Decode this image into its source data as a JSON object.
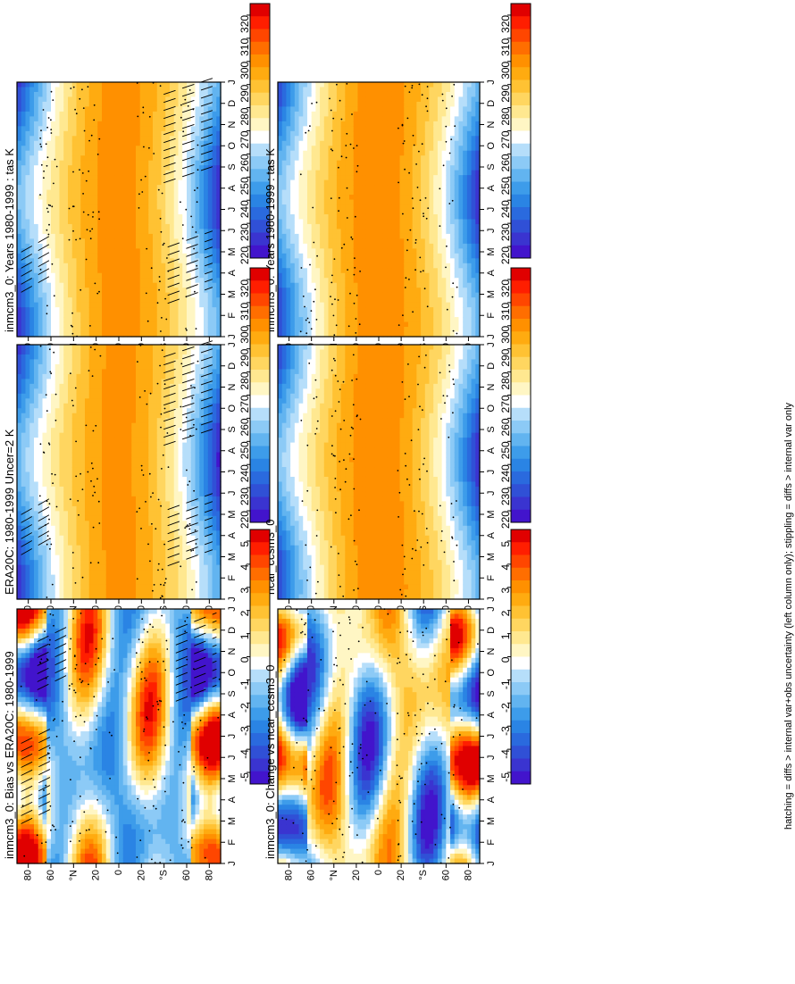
{
  "figure": {
    "footnote": "hatching = diffs > internal var+obs uncertainty (left column only); stippling = diffs > internal var only"
  },
  "months": [
    "J",
    "F",
    "M",
    "A",
    "M",
    "J",
    "J",
    "A",
    "S",
    "O",
    "N",
    "D",
    "J"
  ],
  "lat_ticks": [
    {
      "v": 80,
      "t": "80"
    },
    {
      "v": 60,
      "t": "60"
    },
    {
      "v": 40,
      "t": "°N"
    },
    {
      "v": 20,
      "t": "20"
    },
    {
      "v": 0,
      "t": "0"
    },
    {
      "v": -20,
      "t": "20"
    },
    {
      "v": -40,
      "t": "°S"
    },
    {
      "v": -60,
      "t": "60"
    },
    {
      "v": -80,
      "t": "80"
    }
  ],
  "chart_data": [
    {
      "id": "p1",
      "type": "heatmap",
      "title": "inmcm3_0: Years 1980-1999 : tas K",
      "field": "abs",
      "variant": 0,
      "hatching": true,
      "colorbar": {
        "labels": [
          "320",
          "310",
          "300",
          "290",
          "280",
          "270",
          "260",
          "250",
          "240",
          "230",
          "220"
        ],
        "colors": [
          "#e00000",
          "#ff1e00",
          "#ff4600",
          "#ff6e00",
          "#ff9000",
          "#ffab10",
          "#ffc233",
          "#ffd660",
          "#ffe890",
          "#fff6c4",
          "#ffffff",
          "#b6defa",
          "#8ccaf6",
          "#62b4f0",
          "#3d9cea",
          "#2a84e4",
          "#2a6ade",
          "#3050d6",
          "#3a34d0",
          "#4214cc"
        ]
      },
      "ylim": [
        -90,
        90
      ]
    },
    {
      "id": "p2",
      "type": "heatmap",
      "title": "inmcm3_0: Years 1980-1999 : tas K",
      "field": "abs",
      "variant": 1,
      "hatching": false,
      "colorbar": {
        "labels": [
          "320",
          "310",
          "300",
          "290",
          "280",
          "270",
          "260",
          "250",
          "240",
          "230",
          "220"
        ],
        "colors": [
          "#e00000",
          "#ff1e00",
          "#ff4600",
          "#ff6e00",
          "#ff9000",
          "#ffab10",
          "#ffc233",
          "#ffd660",
          "#ffe890",
          "#fff6c4",
          "#ffffff",
          "#b6defa",
          "#8ccaf6",
          "#62b4f0",
          "#3d9cea",
          "#2a84e4",
          "#2a6ade",
          "#3050d6",
          "#3a34d0",
          "#4214cc"
        ]
      },
      "ylim": [
        -90,
        90
      ]
    },
    {
      "id": "p3",
      "type": "heatmap",
      "title": "ERA20C: 1980-1999 Uncer=2 K",
      "field": "abs",
      "variant": 2,
      "hatching": true,
      "colorbar": {
        "labels": [
          "320",
          "310",
          "300",
          "290",
          "280",
          "270",
          "260",
          "250",
          "240",
          "230",
          "220"
        ],
        "colors": [
          "#e00000",
          "#ff1e00",
          "#ff4600",
          "#ff6e00",
          "#ff9000",
          "#ffab10",
          "#ffc233",
          "#ffd660",
          "#ffe890",
          "#fff6c4",
          "#ffffff",
          "#b6defa",
          "#8ccaf6",
          "#62b4f0",
          "#3d9cea",
          "#2a84e4",
          "#2a6ade",
          "#3050d6",
          "#3a34d0",
          "#4214cc"
        ]
      },
      "ylim": [
        -90,
        90
      ]
    },
    {
      "id": "p4",
      "type": "heatmap",
      "title": "ncar_ccsm3_0",
      "field": "abs",
      "variant": 3,
      "hatching": false,
      "colorbar": {
        "labels": [
          "320",
          "310",
          "300",
          "290",
          "280",
          "270",
          "260",
          "250",
          "240",
          "230",
          "220"
        ],
        "colors": [
          "#e00000",
          "#ff1e00",
          "#ff4600",
          "#ff6e00",
          "#ff9000",
          "#ffab10",
          "#ffc233",
          "#ffd660",
          "#ffe890",
          "#fff6c4",
          "#ffffff",
          "#b6defa",
          "#8ccaf6",
          "#62b4f0",
          "#3d9cea",
          "#2a84e4",
          "#2a6ade",
          "#3050d6",
          "#3a34d0",
          "#4214cc"
        ]
      },
      "ylim": [
        -90,
        90
      ]
    },
    {
      "id": "p5",
      "type": "heatmap",
      "title": "inmcm3_0: Bias vs ERA20C: 1980-1999",
      "field": "diff",
      "variant": 4,
      "hatching": true,
      "colorbar": {
        "labels": [
          "5",
          "4",
          "3",
          "2",
          "1",
          "0",
          "-1",
          "-2",
          "-3",
          "-4",
          "-5"
        ],
        "colors": [
          "#e00000",
          "#ff1e00",
          "#ff4600",
          "#ff6e00",
          "#ff9000",
          "#ffab10",
          "#ffc233",
          "#ffd660",
          "#ffe890",
          "#fff6c4",
          "#ffffff",
          "#b6defa",
          "#8ccaf6",
          "#62b4f0",
          "#3d9cea",
          "#2a84e4",
          "#2a6ade",
          "#3050d6",
          "#3a34d0",
          "#4214cc"
        ]
      },
      "ylim": [
        -90,
        90
      ]
    },
    {
      "id": "p6",
      "type": "heatmap",
      "title": "inmcm3_0: Change vs ncar_ccsm3_0",
      "field": "diff",
      "variant": 5,
      "hatching": false,
      "colorbar": {
        "labels": [
          "5",
          "4",
          "3",
          "2",
          "1",
          "0",
          "-1",
          "-2",
          "-3",
          "-4",
          "-5"
        ],
        "colors": [
          "#e00000",
          "#ff1e00",
          "#ff4600",
          "#ff6e00",
          "#ff9000",
          "#ffab10",
          "#ffc233",
          "#ffd660",
          "#ffe890",
          "#fff6c4",
          "#ffffff",
          "#b6defa",
          "#8ccaf6",
          "#62b4f0",
          "#3d9cea",
          "#2a84e4",
          "#2a6ade",
          "#3050d6",
          "#3a34d0",
          "#4214cc"
        ]
      },
      "ylim": [
        -90,
        90
      ]
    }
  ]
}
